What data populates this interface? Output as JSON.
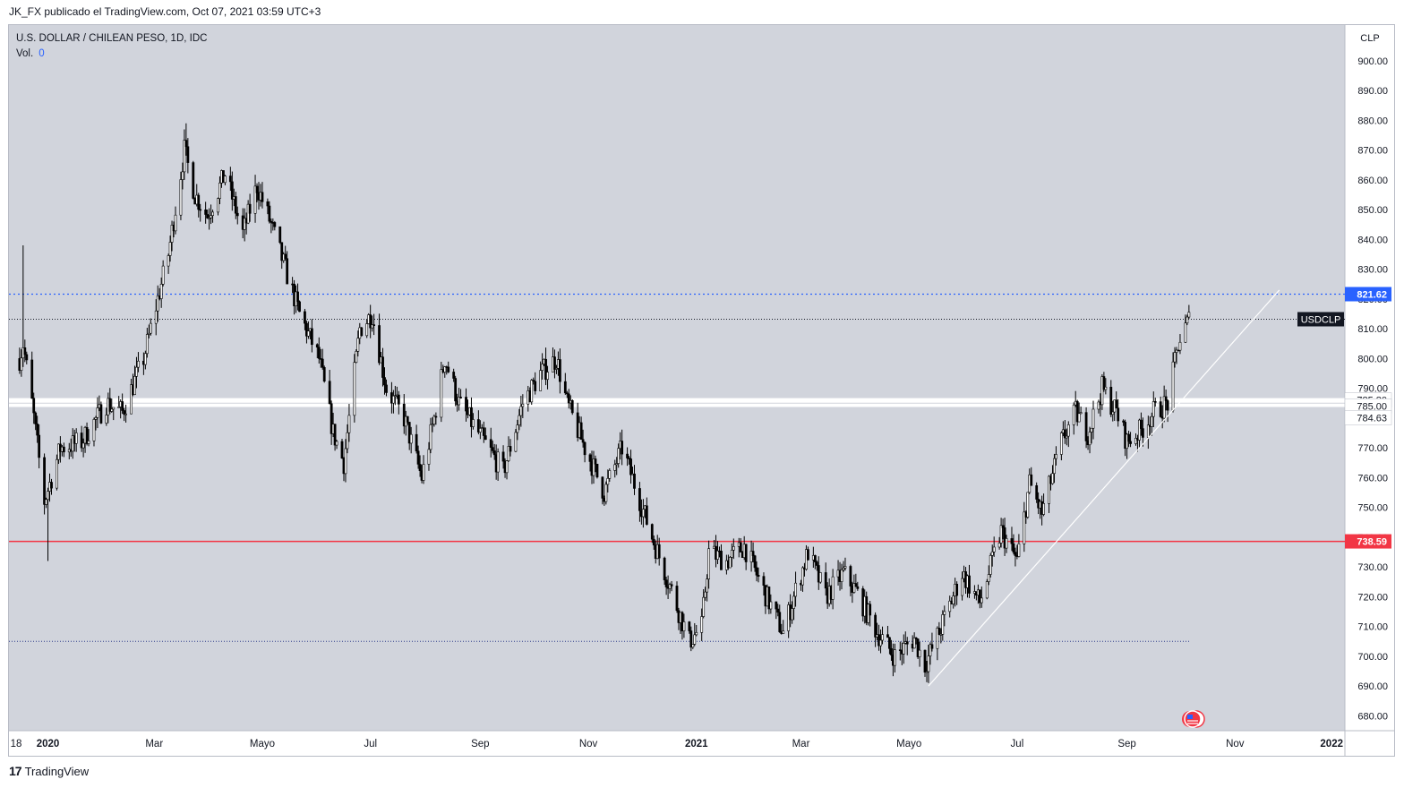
{
  "header": {
    "published_text": "JK_FX publicado el TradingView.com, Oct 07, 2021 03:59 UTC+3"
  },
  "legend": {
    "symbol_text": "U.S. DOLLAR / CHILEAN PESO, 1D, IDC",
    "vol_label": "Vol.",
    "vol_value": "0"
  },
  "footer": {
    "logo_glyph": "17",
    "brand": "TradingView"
  },
  "colors": {
    "plot_bg": "#d1d4dc",
    "candle": "#000000",
    "resistance": "#2962ff",
    "support": "#f23645",
    "trendline": "#ffffff",
    "label_dark": "#131722"
  },
  "chart_data": {
    "type": "candlestick",
    "symbol": "USDCLP",
    "currency": "CLP",
    "ylim": [
      675,
      912
    ],
    "y_ticks": [
      680,
      690,
      700,
      710,
      720,
      730,
      740,
      750,
      760,
      770,
      780,
      790,
      800,
      810,
      820,
      830,
      840,
      850,
      860,
      870,
      880,
      890,
      900
    ],
    "x_labels": [
      "18",
      "2020",
      "Mar",
      "Mayo",
      "Jul",
      "Sep",
      "Nov",
      "2021",
      "Mar",
      "Mayo",
      "Jul",
      "Sep",
      "Nov",
      "2022"
    ],
    "x_labels_bold": [
      "2020",
      "2021",
      "2022"
    ],
    "close_path": [
      [
        "2019-12-16",
        800
      ],
      [
        "2019-12-18",
        805
      ],
      [
        "2019-12-23",
        785
      ],
      [
        "2019-12-30",
        752
      ],
      [
        "2020-01-08",
        770
      ],
      [
        "2020-01-20",
        772
      ],
      [
        "2020-02-03",
        785
      ],
      [
        "2020-02-12",
        782
      ],
      [
        "2020-02-24",
        800
      ],
      [
        "2020-03-09",
        835
      ],
      [
        "2020-03-18",
        870
      ],
      [
        "2020-03-24",
        855
      ],
      [
        "2020-03-31",
        848
      ],
      [
        "2020-04-10",
        862
      ],
      [
        "2020-04-20",
        842
      ],
      [
        "2020-04-28",
        858
      ],
      [
        "2020-05-06",
        845
      ],
      [
        "2020-05-14",
        830
      ],
      [
        "2020-05-22",
        815
      ],
      [
        "2020-06-02",
        800
      ],
      [
        "2020-06-10",
        775
      ],
      [
        "2020-06-16",
        765
      ],
      [
        "2020-06-25",
        810
      ],
      [
        "2020-07-02",
        815
      ],
      [
        "2020-07-10",
        790
      ],
      [
        "2020-07-20",
        780
      ],
      [
        "2020-07-30",
        760
      ],
      [
        "2020-08-06",
        780
      ],
      [
        "2020-08-12",
        800
      ],
      [
        "2020-08-20",
        785
      ],
      [
        "2020-08-31",
        775
      ],
      [
        "2020-09-14",
        762
      ],
      [
        "2020-09-25",
        785
      ],
      [
        "2020-10-05",
        795
      ],
      [
        "2020-10-14",
        800
      ],
      [
        "2020-10-20",
        785
      ],
      [
        "2020-10-30",
        770
      ],
      [
        "2020-11-10",
        755
      ],
      [
        "2020-11-20",
        770
      ],
      [
        "2020-11-27",
        758
      ],
      [
        "2020-12-07",
        740
      ],
      [
        "2020-12-18",
        722
      ],
      [
        "2020-12-28",
        705
      ],
      [
        "2021-01-04",
        710
      ],
      [
        "2021-01-08",
        735
      ],
      [
        "2021-01-18",
        732
      ],
      [
        "2021-01-28",
        737
      ],
      [
        "2021-02-08",
        722
      ],
      [
        "2021-02-19",
        708
      ],
      [
        "2021-02-26",
        722
      ],
      [
        "2021-03-05",
        735
      ],
      [
        "2021-03-15",
        720
      ],
      [
        "2021-03-25",
        728
      ],
      [
        "2021-04-01",
        722
      ],
      [
        "2021-04-13",
        708
      ],
      [
        "2021-04-23",
        700
      ],
      [
        "2021-05-04",
        706
      ],
      [
        "2021-05-10",
        697
      ],
      [
        "2021-05-18",
        708
      ],
      [
        "2021-05-31",
        728
      ],
      [
        "2021-06-10",
        718
      ],
      [
        "2021-06-22",
        742
      ],
      [
        "2021-07-01",
        732
      ],
      [
        "2021-07-08",
        758
      ],
      [
        "2021-07-15",
        748
      ],
      [
        "2021-07-26",
        772
      ],
      [
        "2021-08-03",
        782
      ],
      [
        "2021-08-10",
        775
      ],
      [
        "2021-08-18",
        790
      ],
      [
        "2021-08-26",
        782
      ],
      [
        "2021-09-01",
        772
      ],
      [
        "2021-09-09",
        776
      ],
      [
        "2021-09-16",
        782
      ],
      [
        "2021-09-24",
        785
      ],
      [
        "2021-09-30",
        805
      ],
      [
        "2021-10-06",
        813
      ]
    ],
    "anchor_points": [
      {
        "name": "2020-high",
        "date": "2020-03-19",
        "high": 879
      },
      {
        "name": "2020-low",
        "date": "2020-01-01",
        "low": 732
      },
      {
        "name": "2021-low",
        "date": "2021-05-12",
        "low": 691
      },
      {
        "name": "spike",
        "date": "2019-12-18",
        "high": 838
      }
    ],
    "levels": [
      {
        "name": "resistance",
        "value": 821.62,
        "label": "821.62",
        "style": "dotted"
      },
      {
        "name": "last-price",
        "value": 813.2,
        "label": "USDCLP",
        "style": "dotted"
      },
      {
        "name": "support",
        "value": 738.59,
        "label": "738.59",
        "style": "solid"
      },
      {
        "name": "low-level",
        "value": 705,
        "style": "dotted"
      }
    ],
    "band": {
      "top": 785.8,
      "mid": 785.0,
      "bottom": 784.63,
      "labels": [
        "785.80",
        "785.00",
        "784.63"
      ]
    },
    "trendline": {
      "start": [
        "2021-05-12",
        690
      ],
      "end": [
        "2021-11-26",
        823
      ]
    },
    "legend_position": "top-left",
    "grid": false
  }
}
